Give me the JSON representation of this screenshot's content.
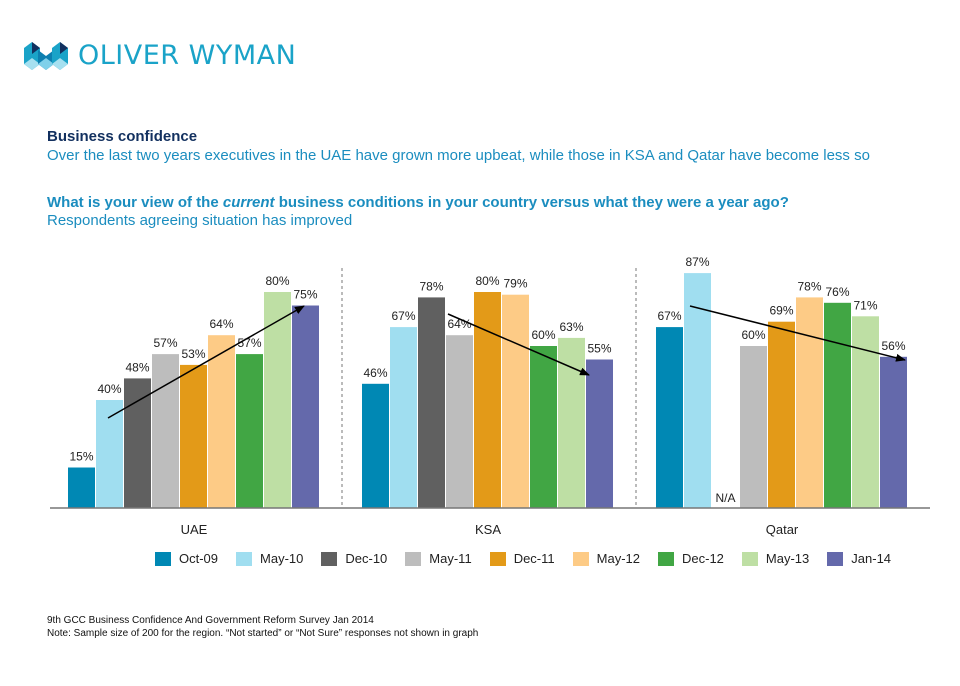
{
  "brand": {
    "name": "OLIVER WYMAN",
    "icon": "oliver-wyman-logo-icon"
  },
  "header": {
    "title": "Business confidence",
    "subtitle": "Over the last two years executives in the UAE have grown more upbeat, while those in KSA and Qatar have become less so"
  },
  "question": {
    "before": "What is your view of the ",
    "emphasis": "current",
    "after": " business conditions in your country versus what they were a  year ago?",
    "sub": "Respondents agreeing situation has improved"
  },
  "chart_data": {
    "type": "bar",
    "title": "What is your view of the current business conditions in your country versus what they were a year ago?",
    "subtitle": "Respondents agreeing situation has improved",
    "xlabel": "",
    "ylabel": "",
    "ylim": [
      0,
      100
    ],
    "grid": false,
    "legend_position": "bottom",
    "categories": [
      "UAE",
      "KSA",
      "Qatar"
    ],
    "series": [
      {
        "name": "Oct-09",
        "color": "#0088b4",
        "values": [
          15,
          46,
          67
        ]
      },
      {
        "name": "May-10",
        "color": "#a0def0",
        "values": [
          40,
          67,
          87
        ]
      },
      {
        "name": "Dec-10",
        "color": "#606060",
        "values": [
          48,
          78,
          null
        ]
      },
      {
        "name": "May-11",
        "color": "#bdbdbd",
        "values": [
          57,
          64,
          60
        ]
      },
      {
        "name": "Dec-11",
        "color": "#e39a18",
        "values": [
          53,
          80,
          69
        ]
      },
      {
        "name": "May-12",
        "color": "#fdcb86",
        "values": [
          64,
          79,
          78
        ]
      },
      {
        "name": "Dec-12",
        "color": "#41a644",
        "values": [
          57,
          60,
          76
        ]
      },
      {
        "name": "May-13",
        "color": "#bedfa4",
        "values": [
          80,
          63,
          71
        ]
      },
      {
        "name": "Jan-14",
        "color": "#6469ab",
        "values": [
          75,
          55,
          56
        ]
      }
    ],
    "missing_label": "N/A",
    "value_suffix": "%",
    "annotations": [
      {
        "type": "trend-arrow",
        "category": "UAE",
        "direction": "up",
        "from_series": "May-10",
        "to_series": "Jan-14"
      },
      {
        "type": "trend-arrow",
        "category": "KSA",
        "direction": "down",
        "from_series": "May-11",
        "to_series": "Jan-14"
      },
      {
        "type": "trend-arrow",
        "category": "Qatar",
        "direction": "down",
        "from_series": "May-10",
        "to_series": "Jan-14"
      }
    ]
  },
  "footnotes": [
    "9th GCC Business Confidence And Government Reform Survey Jan 2014",
    "Note: Sample size of 200 for the region. “Not started” or “Not Sure” responses not shown in graph"
  ]
}
